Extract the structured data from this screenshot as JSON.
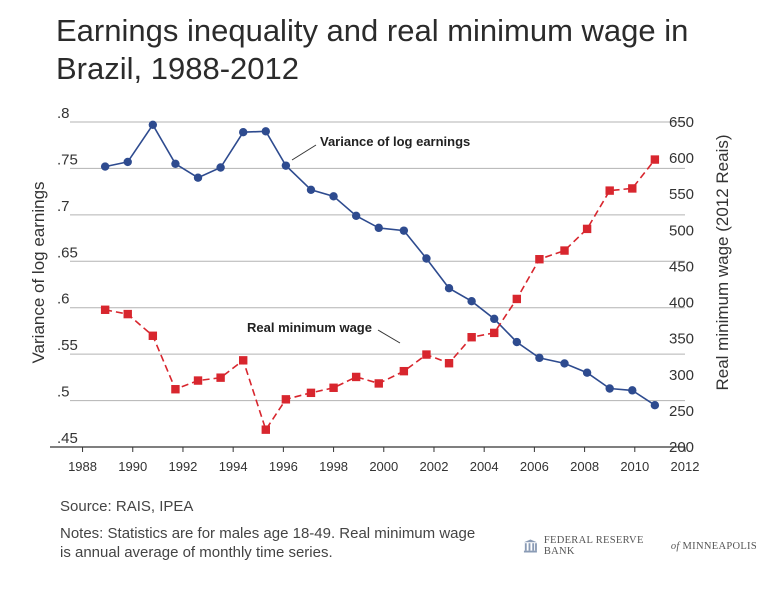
{
  "chart_data": {
    "type": "line",
    "title": "Earnings inequality and real minimum wage in Brazil, 1988-2012",
    "ylabel_left": "Variance of log earnings",
    "ylabel_right": "Real minimum wage (2012 Reais)",
    "x_ticks": [
      "1988",
      "1990",
      "1992",
      "1994",
      "1996",
      "1998",
      "2000",
      "2002",
      "2004",
      "2006",
      "2008",
      "2010",
      "2012"
    ],
    "x_tick_values": [
      1988,
      1990,
      1992,
      1994,
      1996,
      1998,
      2000,
      2002,
      2004,
      2006,
      2008,
      2010,
      2012
    ],
    "xlim": [
      1987.5,
      2012
    ],
    "ylim_left": [
      0.45,
      0.8
    ],
    "ylim_right": [
      200,
      650
    ],
    "left_ticks": [
      {
        "value": 0.8,
        "label": ".8"
      },
      {
        "value": 0.75,
        "label": ".75"
      },
      {
        "value": 0.7,
        "label": ".7"
      },
      {
        "value": 0.65,
        "label": ".65"
      },
      {
        "value": 0.6,
        "label": ".6"
      },
      {
        "value": 0.55,
        "label": ".55"
      },
      {
        "value": 0.5,
        "label": ".5"
      },
      {
        "value": 0.45,
        "label": ".45"
      }
    ],
    "right_ticks": [
      "650",
      "600",
      "550",
      "500",
      "450",
      "400",
      "350",
      "300",
      "250",
      "200"
    ],
    "right_tick_values": [
      650,
      600,
      550,
      500,
      450,
      400,
      350,
      300,
      250,
      200
    ],
    "grid": true,
    "series": [
      {
        "name": "Variance of log earnings",
        "axis": "left",
        "color": "#2e4b8f",
        "marker": "circle",
        "line_style": "solid",
        "x": [
          1988.9,
          1989.8,
          1990.8,
          1991.7,
          1992.6,
          1993.5,
          1994.4,
          1995.3,
          1996.1,
          1997.1,
          1998.0,
          1998.9,
          1999.8,
          2000.8,
          2001.7,
          2002.6,
          2003.5,
          2004.4,
          2005.3,
          2006.2,
          2007.2,
          2008.1,
          2009.0,
          2009.9,
          2010.8
        ],
        "values": [
          0.752,
          0.757,
          0.797,
          0.755,
          0.74,
          0.751,
          0.789,
          0.79,
          0.753,
          0.727,
          0.72,
          0.699,
          0.686,
          0.683,
          0.653,
          0.621,
          0.607,
          0.588,
          0.563,
          0.546,
          0.54,
          0.53,
          0.513,
          0.511,
          0.495
        ]
      },
      {
        "name": "Real minimum wage",
        "axis": "right",
        "color": "#d8262e",
        "marker": "square",
        "line_style": "dashed",
        "x": [
          1988.9,
          1989.8,
          1990.8,
          1991.7,
          1992.6,
          1993.5,
          1994.4,
          1995.3,
          1996.1,
          1997.1,
          1998.0,
          1998.9,
          1999.8,
          2000.8,
          2001.7,
          2002.6,
          2003.5,
          2004.4,
          2005.3,
          2006.2,
          2007.2,
          2008.1,
          2009.0,
          2009.9,
          2010.8
        ],
        "values": [
          390,
          384,
          354,
          280,
          292,
          296,
          320,
          224,
          266,
          275,
          282,
          297,
          288,
          305,
          328,
          316,
          352,
          358,
          405,
          460,
          472,
          502,
          555,
          558,
          598
        ]
      }
    ],
    "annotations": [
      {
        "text": "Variance of log earnings",
        "series": 0
      },
      {
        "text": "Real minimum wage",
        "series": 1
      }
    ]
  },
  "footer": {
    "source": "Source: RAIS, IPEA",
    "notes": "Notes: Statistics are for males age 18-49. Real minimum wage is annual average of monthly time series.",
    "logo_text_main": "FEDERAL RESERVE BANK",
    "logo_text_of": "of",
    "logo_text_city": "MINNEAPOLIS"
  },
  "colors": {
    "blue": "#2e4b8f",
    "red": "#d8262e",
    "grid": "#b3b3b3",
    "axis": "#333333"
  }
}
